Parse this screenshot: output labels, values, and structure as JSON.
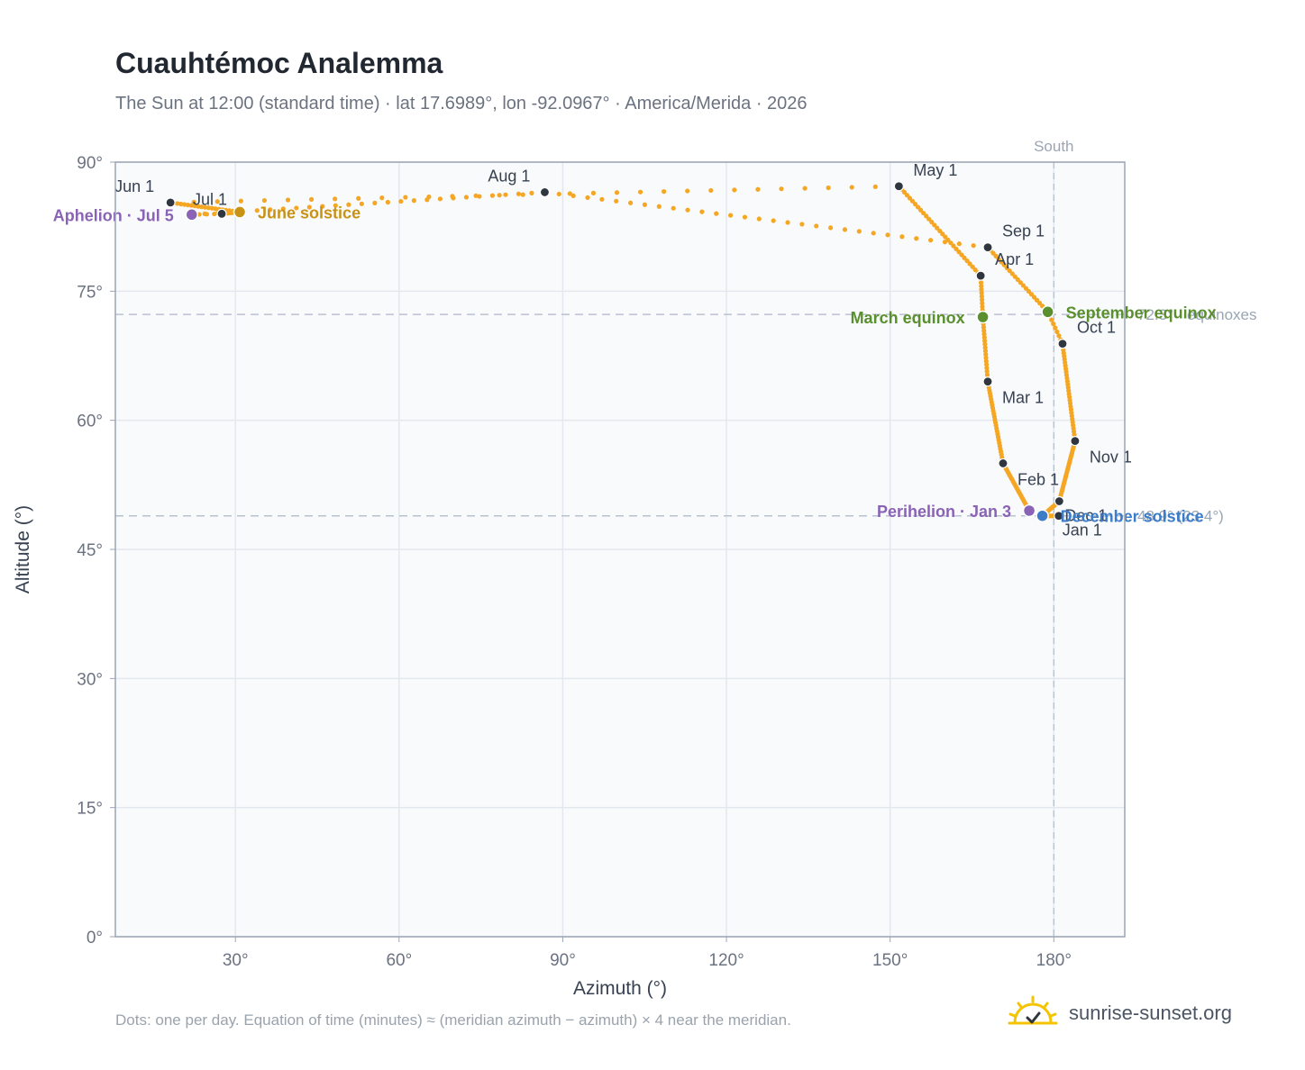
{
  "header": {
    "title": "Cuauhtémoc Analemma",
    "subtitle": "The Sun at 12:00 (standard time) · lat 17.6989°, lon -92.0967° · America/Merida · 2026"
  },
  "footer": {
    "note": "Dots: one per day. Equation of time (minutes) ≈ (meridian azimuth − azimuth) × 4 near the meridian.",
    "brand": "sunrise-sunset.org"
  },
  "colors": {
    "curve": "#f5a623",
    "month_dot": "#2f3640",
    "equinox": "#5a8f2e",
    "solstice_june": "#c89215",
    "solstice_december": "#3d7cc9",
    "apsis": "#8a63b5",
    "plot_bg": "#f8fafc",
    "grid": "#e3e8ee",
    "ref_line": "#b8c2cf"
  },
  "chart_data": {
    "type": "scatter",
    "xlabel": "Azimuth (°)",
    "ylabel": "Altitude (°)",
    "xlim": [
      8,
      193
    ],
    "ylim": [
      0,
      90
    ],
    "x_ticks": [
      30,
      60,
      90,
      120,
      150,
      180
    ],
    "x_tick_labels": [
      "30°",
      "60°",
      "90°",
      "120°",
      "150°",
      "180°"
    ],
    "y_ticks": [
      0,
      15,
      30,
      45,
      60,
      75,
      90
    ],
    "y_tick_labels": [
      "0°",
      "15°",
      "30°",
      "45°",
      "60°",
      "75°",
      "90°"
    ],
    "grid": true,
    "reference_lines": [
      {
        "orientation": "vertical",
        "value": 180,
        "label": "South"
      },
      {
        "orientation": "horizontal",
        "value": 72.3,
        "label": "72.3° · equinoxes"
      },
      {
        "orientation": "horizontal",
        "value": 48.9,
        "label": "48.9° (23.4°)"
      }
    ],
    "series": [
      {
        "name": "daily",
        "anchors": [
          {
            "day": 1,
            "az": 180.9,
            "alt": 48.9
          },
          {
            "day": 3,
            "az": 175.5,
            "alt": 49.5
          },
          {
            "day": 32,
            "az": 170.7,
            "alt": 55.0
          },
          {
            "day": 60,
            "az": 167.9,
            "alt": 64.5
          },
          {
            "day": 79,
            "az": 167.0,
            "alt": 72.0
          },
          {
            "day": 91,
            "az": 166.6,
            "alt": 76.8
          },
          {
            "day": 121,
            "az": 151.6,
            "alt": 87.2
          },
          {
            "day": 152,
            "az": 18.1,
            "alt": 85.3
          },
          {
            "day": 172,
            "az": 30.8,
            "alt": 84.2
          },
          {
            "day": 182,
            "az": 27.5,
            "alt": 84.0
          },
          {
            "day": 186,
            "az": 22.0,
            "alt": 83.9
          },
          {
            "day": 213,
            "az": 86.7,
            "alt": 86.5
          },
          {
            "day": 244,
            "az": 167.9,
            "alt": 80.1
          },
          {
            "day": 266,
            "az": 178.9,
            "alt": 72.6
          },
          {
            "day": 274,
            "az": 181.6,
            "alt": 68.9
          },
          {
            "day": 305,
            "az": 183.9,
            "alt": 57.6
          },
          {
            "day": 335,
            "az": 181.0,
            "alt": 50.6
          },
          {
            "day": 355,
            "az": 177.9,
            "alt": 48.9
          },
          {
            "day": 365,
            "az": 180.9,
            "alt": 48.9
          }
        ]
      }
    ],
    "month_markers": [
      {
        "label": "Jan 1",
        "az": 180.9,
        "alt": 48.9
      },
      {
        "label": "Feb 1",
        "az": 170.7,
        "alt": 55.0
      },
      {
        "label": "Mar 1",
        "az": 167.9,
        "alt": 64.5
      },
      {
        "label": "Apr 1",
        "az": 166.6,
        "alt": 76.8
      },
      {
        "label": "May 1",
        "az": 151.6,
        "alt": 87.2
      },
      {
        "label": "Jun 1",
        "az": 18.1,
        "alt": 85.3
      },
      {
        "label": "Jul 1",
        "az": 27.5,
        "alt": 84.0
      },
      {
        "label": "Aug 1",
        "az": 86.7,
        "alt": 86.5
      },
      {
        "label": "Sep 1",
        "az": 167.9,
        "alt": 80.1
      },
      {
        "label": "Oct 1",
        "az": 181.6,
        "alt": 68.9
      },
      {
        "label": "Nov 1",
        "az": 183.9,
        "alt": 57.6
      },
      {
        "label": "Dec 1",
        "az": 181.0,
        "alt": 50.6
      }
    ],
    "events": [
      {
        "label": "March equinox",
        "kind": "equinox",
        "az": 167.0,
        "alt": 72.0,
        "anchor": "end"
      },
      {
        "label": "September equinox",
        "kind": "equinox",
        "az": 178.9,
        "alt": 72.6,
        "anchor": "start"
      },
      {
        "label": "June solstice",
        "kind": "solstice_june",
        "az": 30.8,
        "alt": 84.2,
        "anchor": "start"
      },
      {
        "label": "December solstice",
        "kind": "solstice_december",
        "az": 177.9,
        "alt": 48.9,
        "anchor": "start"
      },
      {
        "label": "Perihelion · Jan 3",
        "kind": "apsis",
        "az": 175.5,
        "alt": 49.5,
        "anchor": "end"
      },
      {
        "label": "Aphelion · Jul 5",
        "kind": "apsis",
        "az": 22.0,
        "alt": 83.9,
        "anchor": "end"
      }
    ]
  }
}
